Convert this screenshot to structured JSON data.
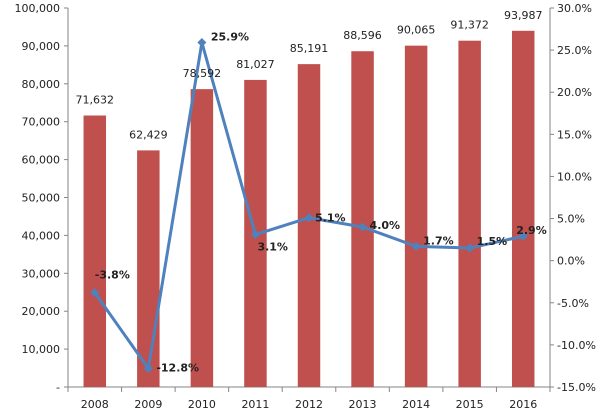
{
  "chart_data": {
    "type": "bar",
    "title": "",
    "xlabel": "",
    "ylabel": "",
    "categories": [
      "2008",
      "2009",
      "2010",
      "2011",
      "2012",
      "2013",
      "2014",
      "2015",
      "2016"
    ],
    "series": [
      {
        "name": "value",
        "type": "bar",
        "axis": "left",
        "color": "#C0504D",
        "values": [
          71632,
          62429,
          78592,
          81027,
          85191,
          88596,
          90065,
          91372,
          93987
        ],
        "labels": [
          "71,632",
          "62,429",
          "78,592",
          "81,027",
          "85,191",
          "88,596",
          "90,065",
          "91,372",
          "93,987"
        ]
      },
      {
        "name": "growth",
        "type": "line",
        "axis": "right",
        "color": "#4F81BD",
        "values": [
          -3.8,
          -12.8,
          25.9,
          3.1,
          5.1,
          4.0,
          1.7,
          1.5,
          2.9
        ],
        "labels": [
          "-3.8%",
          "-12.8%",
          "25.9%",
          "3.1%",
          "5.1%",
          "4.0%",
          "1.7%",
          "1.5%",
          "2.9%"
        ]
      }
    ],
    "y_left": {
      "ylim": [
        0,
        100000
      ],
      "ticks": [
        0,
        10000,
        20000,
        30000,
        40000,
        50000,
        60000,
        70000,
        80000,
        90000,
        100000
      ],
      "tick_labels": [
        "-",
        "10,000",
        "20,000",
        "30,000",
        "40,000",
        "50,000",
        "60,000",
        "70,000",
        "80,000",
        "90,000",
        "100,000"
      ]
    },
    "y_right": {
      "ylim": [
        -15,
        30
      ],
      "ticks": [
        -15,
        -10,
        -5,
        0,
        5,
        10,
        15,
        20,
        25,
        30
      ],
      "tick_labels": [
        "-15.0%",
        "-10.0%",
        "-5.0%",
        "0.0%",
        "5.0%",
        "10.0%",
        "15.0%",
        "20.0%",
        "25.0%",
        "30.0%"
      ]
    },
    "grid": false,
    "legend": "none",
    "colors": {
      "axis": "#868686",
      "text": "#222222"
    }
  }
}
